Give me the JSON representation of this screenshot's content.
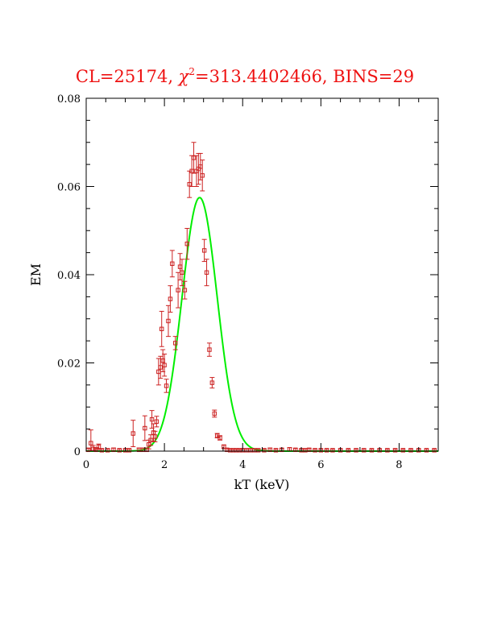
{
  "chart_data": {
    "type": "scatter",
    "title_parts": [
      "CL=25174, ",
      "χ",
      "2",
      "=313.4402466, BINS=29"
    ],
    "xlabel": "kT (keV)",
    "ylabel": "EM",
    "xlim": [
      0,
      9
    ],
    "ylim": [
      0,
      0.08
    ],
    "xticks": [
      0,
      2,
      4,
      6,
      8
    ],
    "xtick_labels": [
      "0",
      "2",
      "4",
      "6",
      "8"
    ],
    "yticks": [
      0,
      0.02,
      0.04,
      0.06,
      0.08
    ],
    "ytick_labels": [
      "0",
      "0.02",
      "0.04",
      "0.06",
      "0.08"
    ],
    "grid": false,
    "colors": {
      "title": "#ee1111",
      "points": "#cc2222",
      "fit": "#00ee00",
      "axes": "#000000"
    },
    "series": [
      {
        "kind": "points_with_errorbars",
        "x": [
          0.05,
          0.12,
          0.18,
          0.25,
          0.32,
          0.4,
          0.55,
          0.7,
          0.85,
          1.0,
          1.1,
          1.2,
          1.35,
          1.45,
          1.5,
          1.55,
          1.6,
          1.65,
          1.68,
          1.72,
          1.76,
          1.8,
          1.85,
          1.9,
          1.93,
          1.96,
          2.0,
          2.05,
          2.1,
          2.15,
          2.2,
          2.28,
          2.35,
          2.4,
          2.45,
          2.52,
          2.58,
          2.64,
          2.7,
          2.75,
          2.82,
          2.87,
          2.92,
          2.97,
          3.02,
          3.08,
          3.15,
          3.22,
          3.28,
          3.35,
          3.42,
          3.52,
          3.6,
          3.68,
          3.76,
          3.84,
          3.92,
          4.0,
          4.1,
          4.2,
          4.3,
          4.4,
          4.55,
          4.7,
          4.85,
          5.0,
          5.2,
          5.35,
          5.5,
          5.6,
          5.7,
          5.85,
          6.0,
          6.15,
          6.3,
          6.5,
          6.7,
          6.9,
          7.1,
          7.3,
          7.5,
          7.7,
          7.9,
          8.1,
          8.3,
          8.5,
          8.7,
          8.9
        ],
        "y": [
          0.0003,
          0.0018,
          0.0005,
          0.0003,
          0.001,
          0.0002,
          0.0002,
          0.0003,
          0.0002,
          0.0002,
          0.0002,
          0.004,
          0.0003,
          0.0003,
          0.0052,
          0.0003,
          0.0015,
          0.0025,
          0.0072,
          0.0042,
          0.0033,
          0.0067,
          0.018,
          0.019,
          0.0277,
          0.0205,
          0.0195,
          0.0148,
          0.0295,
          0.0345,
          0.0425,
          0.0245,
          0.0365,
          0.0418,
          0.0405,
          0.0365,
          0.047,
          0.0605,
          0.0635,
          0.0665,
          0.0635,
          0.064,
          0.0645,
          0.0625,
          0.0455,
          0.0405,
          0.023,
          0.0155,
          0.0085,
          0.0035,
          0.003,
          0.001,
          0.0003,
          0.0002,
          0.0002,
          0.0002,
          0.0002,
          0.0002,
          0.0002,
          0.0002,
          0.0002,
          0.0002,
          0.0002,
          0.0003,
          0.0002,
          0.0003,
          0.0004,
          0.0003,
          0.0002,
          0.0002,
          0.0003,
          0.0002,
          0.0002,
          0.0002,
          0.0002,
          0.0002,
          0.0002,
          0.0002,
          0.0002,
          0.0002,
          0.0002,
          0.0002,
          0.0002,
          0.0002,
          0.0002,
          0.0002,
          0.0002,
          0.0002
        ],
        "yerr": [
          0.0003,
          0.003,
          0.0008,
          0.0005,
          0.0006,
          0.0003,
          0.0003,
          0.0004,
          0.0003,
          0.0003,
          0.0003,
          0.003,
          0.0004,
          0.0004,
          0.0028,
          0.0004,
          0.001,
          0.0012,
          0.002,
          0.002,
          0.0012,
          0.0012,
          0.003,
          0.0025,
          0.004,
          0.0025,
          0.0025,
          0.0015,
          0.0035,
          0.003,
          0.003,
          0.0015,
          0.004,
          0.003,
          0.003,
          0.002,
          0.0035,
          0.003,
          0.0035,
          0.0035,
          0.0035,
          0.0035,
          0.003,
          0.0035,
          0.0025,
          0.003,
          0.0015,
          0.0012,
          0.0008,
          0.0005,
          0.0005,
          0.0004,
          0.0003,
          0.0003,
          0.0003,
          0.0003,
          0.0003,
          0.0003,
          0.0003,
          0.0003,
          0.0003,
          0.0003,
          0.0003,
          0.0004,
          0.0003,
          0.0003,
          0.0004,
          0.0003,
          0.0003,
          0.0003,
          0.0003,
          0.0003,
          0.0003,
          0.0003,
          0.0003,
          0.0003,
          0.0003,
          0.0003,
          0.0003,
          0.0003,
          0.0003,
          0.0003,
          0.0003,
          0.0003,
          0.0003,
          0.0003,
          0.0003,
          0.0003
        ]
      },
      {
        "kind": "fit_curve",
        "model": "gaussian",
        "peak": 0.0575,
        "center": 2.9,
        "sigma": 0.45,
        "x_range": [
          0,
          9
        ]
      }
    ]
  }
}
